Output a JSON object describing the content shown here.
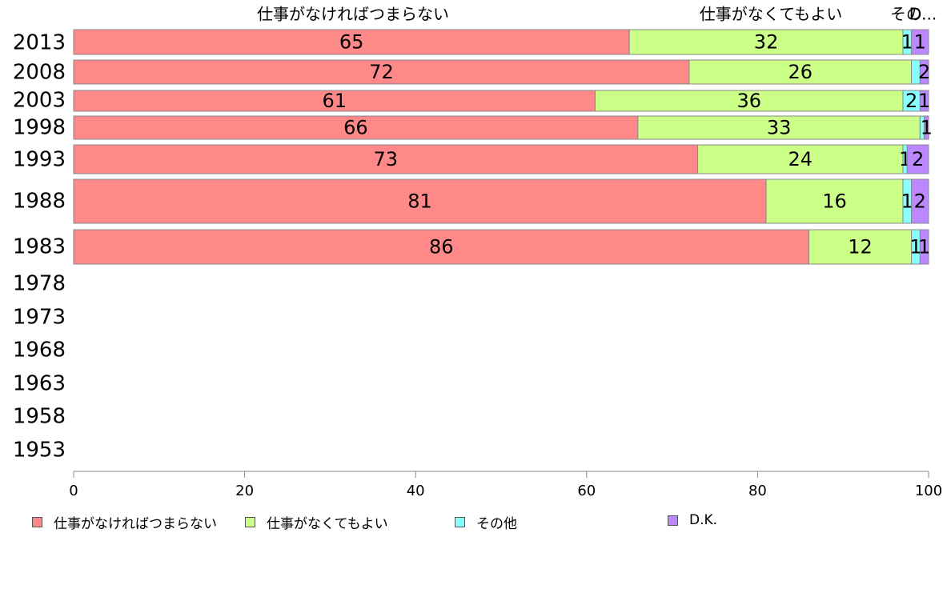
{
  "chart_data": {
    "type": "bar",
    "orientation": "horizontal",
    "stacked": true,
    "categories": [
      "2013",
      "2008",
      "2003",
      "1998",
      "1993",
      "1988",
      "1983",
      "1978",
      "1973",
      "1968",
      "1963",
      "1958",
      "1953"
    ],
    "series": [
      {
        "name": "仕事がなければつまらない",
        "color": "#ff8888",
        "values": [
          65,
          72,
          61,
          66,
          73,
          81,
          86,
          null,
          null,
          null,
          null,
          null,
          null
        ]
      },
      {
        "name": "仕事がなくてもよい",
        "color": "#ccff88",
        "values": [
          32,
          26,
          36,
          33,
          24,
          16,
          12,
          null,
          null,
          null,
          null,
          null,
          null
        ]
      },
      {
        "name": "その他",
        "color": "#88ffff",
        "values": [
          1,
          1,
          2,
          0.5,
          0.5,
          1,
          1,
          null,
          null,
          null,
          null,
          null,
          null
        ]
      },
      {
        "name": "D.K.",
        "color": "#bb88ff",
        "values": [
          1,
          2,
          1,
          1,
          2,
          2,
          1,
          null,
          null,
          null,
          null,
          null,
          null
        ]
      }
    ],
    "data_labels": [
      [
        "65",
        "32",
        "1",
        "1"
      ],
      [
        "72",
        "26",
        "",
        "2"
      ],
      [
        "61",
        "36",
        "2",
        "1"
      ],
      [
        "66",
        "33",
        "",
        "1"
      ],
      [
        "73",
        "24",
        "1",
        "2"
      ],
      [
        "81",
        "16",
        "1",
        "2"
      ],
      [
        "86",
        "12",
        "1",
        "1"
      ]
    ],
    "top_labels": [
      "仕事がなければつまらない",
      "仕事がなくてもよい",
      "その",
      "D..."
    ],
    "x_ticks": [
      "0",
      "20",
      "40",
      "60",
      "80",
      "100"
    ],
    "xlim": [
      0,
      100
    ],
    "legend_position": "bottom",
    "grid": false
  }
}
